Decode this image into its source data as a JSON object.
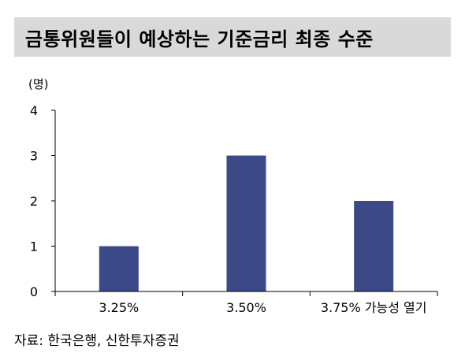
{
  "header": {
    "title": "금통위원들이 예상하는 기준금리 최종 수준"
  },
  "chart_data": {
    "type": "bar",
    "unit_label": "(명)",
    "categories": [
      "3.25%",
      "3.50%",
      "3.75% 가능성 열기"
    ],
    "values": [
      1,
      3,
      2
    ],
    "ylim": [
      0,
      4
    ],
    "yticks": [
      0,
      1,
      2,
      3,
      4
    ],
    "bar_color": "#3b4a86",
    "grid": false,
    "title": "",
    "xlabel": "",
    "ylabel": ""
  },
  "footer": {
    "source": "자료: 한국은행, 신한투자증권"
  }
}
